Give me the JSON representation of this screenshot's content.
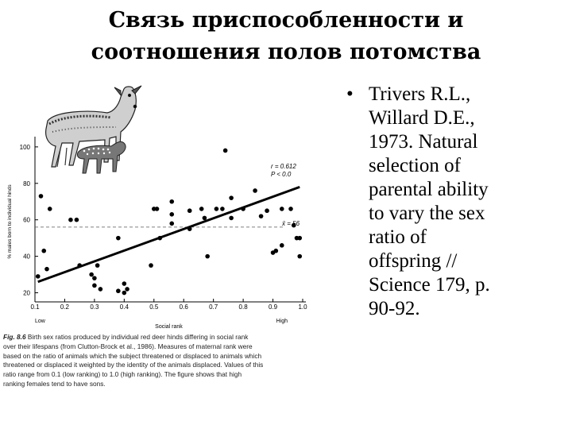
{
  "slide": {
    "title_lines": [
      "Связь приспособленности и",
      "соотношения полов потомства"
    ],
    "reference_bullet": "•",
    "reference_lines": [
      "Trivers R.L.,",
      "Willard D.E.,",
      "1973. Natural",
      "selection of",
      "parental ability",
      "to vary the sex",
      "ratio of",
      "offspring //",
      "Science 179, p.",
      "90-92."
    ]
  },
  "caption": {
    "fig_label": "Fig. 8.6",
    "lines": [
      "Birth sex ratios produced by individual red deer hinds differing in social rank",
      "over their lifespans (from Clutton-Brock et al., 1986). Measures of maternal rank were",
      "based on the ratio of animals which the subject threatened or displaced to animals which",
      "threatened or displaced it weighted by the identity of the animals displaced. Values of this",
      "ratio range from 0.1 (low ranking) to 1.0 (high ranking). The figure shows that high",
      "ranking females tend to have sons."
    ]
  },
  "colors": {
    "points": "#000000",
    "regression": "#000000",
    "mean_line": "#555555"
  },
  "illustration": {
    "icon": "red-deer-hind-with-fawn-icon"
  },
  "chart_data": {
    "type": "scatter",
    "ylabel": "% males born to individual hinds",
    "xlabel": "Social rank",
    "x_end_labels": {
      "low": "Low",
      "high": "High"
    },
    "x_ticks": [
      0.1,
      0.2,
      0.3,
      0.4,
      0.5,
      0.6,
      0.7,
      0.8,
      0.9,
      1.0
    ],
    "x_tick_labels": [
      "0.1",
      "0.2",
      "0.3",
      "0.4",
      "0.5",
      "0.6",
      "0.7",
      "0.8",
      "0.9",
      "1.0"
    ],
    "y_ticks": [
      20,
      40,
      60,
      80,
      100
    ],
    "y_tick_labels": [
      "20",
      "40",
      "60",
      "80",
      "100"
    ],
    "xlim": [
      0.1,
      1.0
    ],
    "ylim": [
      15,
      103
    ],
    "stats": {
      "r": "r = 0.612",
      "p": "P < 0.0",
      "mean": "x̄ = 56"
    },
    "mean_value": 56,
    "regression": {
      "x": [
        0.11,
        0.99
      ],
      "y": [
        26,
        78
      ]
    },
    "points": [
      {
        "x": 0.12,
        "y": 73
      },
      {
        "x": 0.13,
        "y": 43
      },
      {
        "x": 0.14,
        "y": 33
      },
      {
        "x": 0.15,
        "y": 66
      },
      {
        "x": 0.11,
        "y": 29
      },
      {
        "x": 0.22,
        "y": 60
      },
      {
        "x": 0.24,
        "y": 60
      },
      {
        "x": 0.25,
        "y": 35
      },
      {
        "x": 0.29,
        "y": 30
      },
      {
        "x": 0.3,
        "y": 28
      },
      {
        "x": 0.3,
        "y": 24
      },
      {
        "x": 0.31,
        "y": 35
      },
      {
        "x": 0.32,
        "y": 22
      },
      {
        "x": 0.38,
        "y": 50
      },
      {
        "x": 0.38,
        "y": 21
      },
      {
        "x": 0.4,
        "y": 25
      },
      {
        "x": 0.41,
        "y": 22
      },
      {
        "x": 0.4,
        "y": 20
      },
      {
        "x": 0.49,
        "y": 35
      },
      {
        "x": 0.5,
        "y": 66
      },
      {
        "x": 0.51,
        "y": 66
      },
      {
        "x": 0.52,
        "y": 50
      },
      {
        "x": 0.56,
        "y": 70
      },
      {
        "x": 0.56,
        "y": 63
      },
      {
        "x": 0.56,
        "y": 58
      },
      {
        "x": 0.62,
        "y": 65
      },
      {
        "x": 0.62,
        "y": 55
      },
      {
        "x": 0.66,
        "y": 66
      },
      {
        "x": 0.67,
        "y": 61
      },
      {
        "x": 0.68,
        "y": 40
      },
      {
        "x": 0.71,
        "y": 66
      },
      {
        "x": 0.73,
        "y": 66
      },
      {
        "x": 0.74,
        "y": 98
      },
      {
        "x": 0.76,
        "y": 72
      },
      {
        "x": 0.76,
        "y": 61
      },
      {
        "x": 0.8,
        "y": 66
      },
      {
        "x": 0.84,
        "y": 76
      },
      {
        "x": 0.86,
        "y": 62
      },
      {
        "x": 0.88,
        "y": 65
      },
      {
        "x": 0.9,
        "y": 42
      },
      {
        "x": 0.91,
        "y": 43
      },
      {
        "x": 0.93,
        "y": 46
      },
      {
        "x": 0.93,
        "y": 66
      },
      {
        "x": 0.96,
        "y": 66
      },
      {
        "x": 0.97,
        "y": 57
      },
      {
        "x": 0.98,
        "y": 50
      },
      {
        "x": 0.99,
        "y": 50
      },
      {
        "x": 0.99,
        "y": 40
      }
    ]
  }
}
